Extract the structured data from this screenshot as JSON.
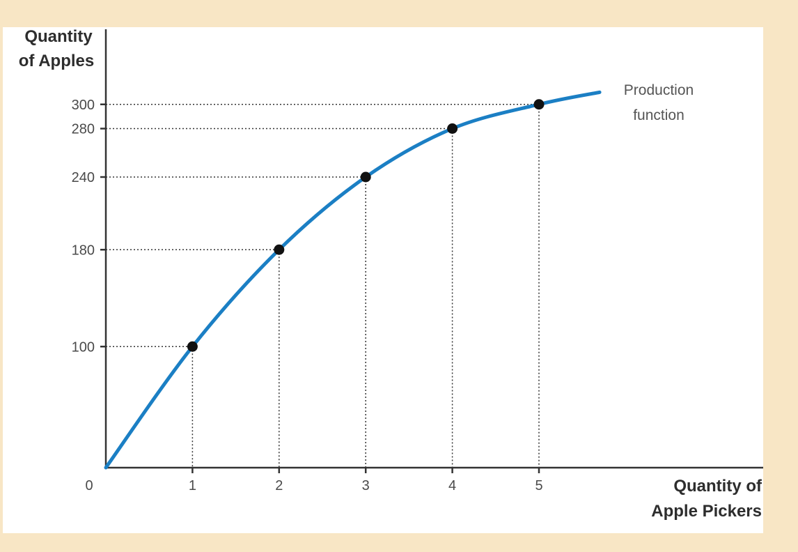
{
  "chart_data": {
    "type": "line",
    "ylabel_lines": [
      "Quantity",
      "of Apples"
    ],
    "xlabel_lines": [
      "Quantity of",
      "Apple Pickers"
    ],
    "origin_label": "0",
    "xlim": [
      0,
      7.5
    ],
    "ylim": [
      0,
      330
    ],
    "x_ticks": [
      "1",
      "2",
      "3",
      "4",
      "5"
    ],
    "y_ticks": [
      "100",
      "180",
      "240",
      "280",
      "300"
    ],
    "series": [
      {
        "points": [
          {
            "x": 0,
            "y": 0
          },
          {
            "x": 1,
            "y": 100
          },
          {
            "x": 2,
            "y": 180
          },
          {
            "x": 3,
            "y": 240
          },
          {
            "x": 4,
            "y": 280
          },
          {
            "x": 5,
            "y": 300
          }
        ],
        "curve_end": {
          "x": 5.7,
          "y": 310
        },
        "color": "#1b7fc4"
      }
    ],
    "annotation_lines": [
      "Production",
      "function"
    ],
    "grid": false
  }
}
